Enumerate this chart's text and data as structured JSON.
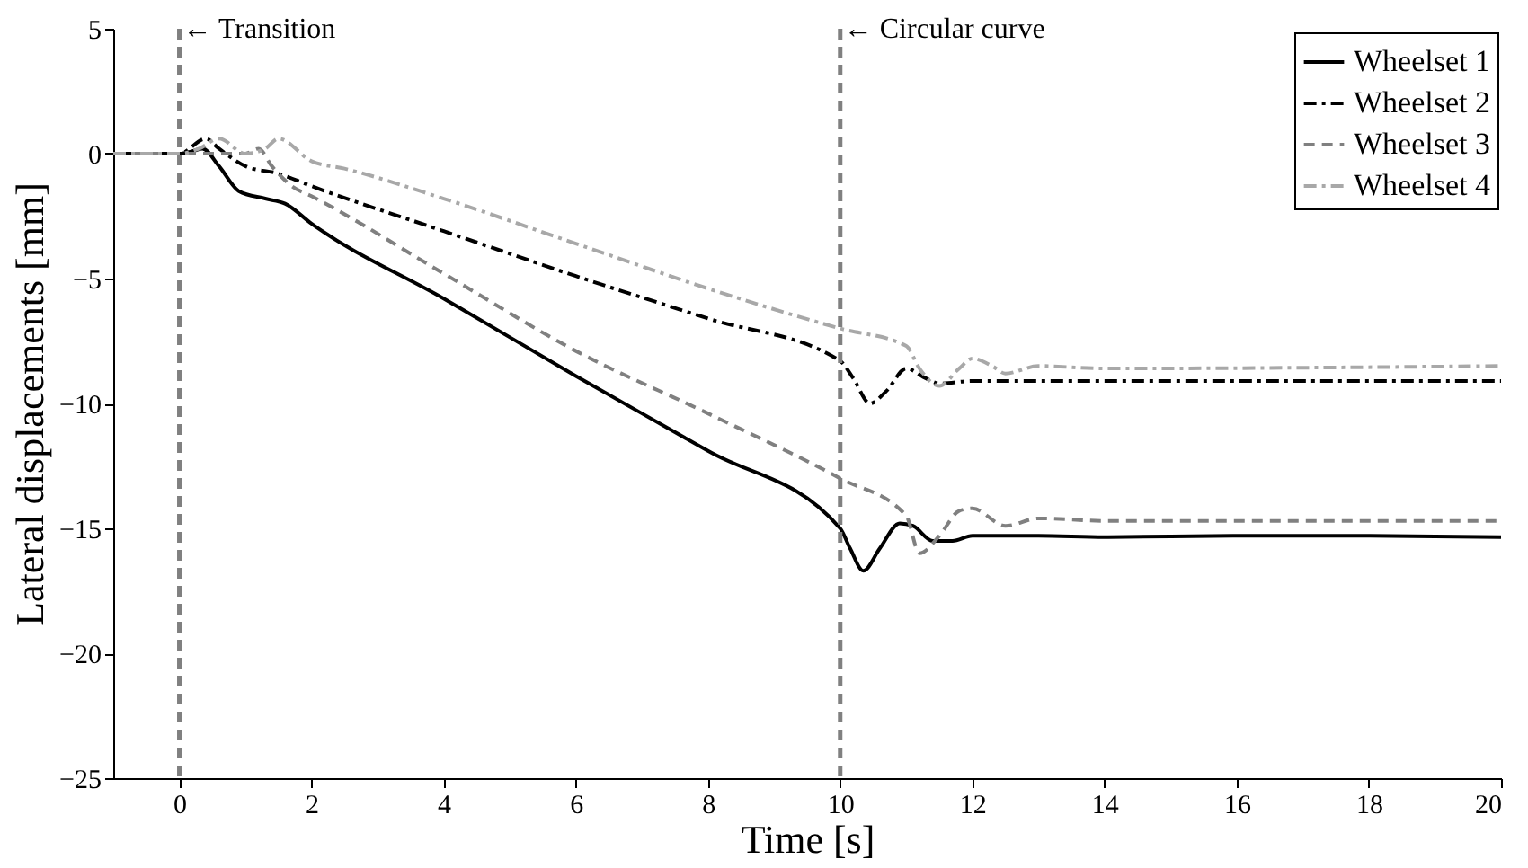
{
  "chart_data": {
    "type": "line",
    "xlabel": "Time [s]",
    "ylabel": "Lateral displacements [mm]",
    "xlim": [
      -1,
      20
    ],
    "ylim": [
      -25,
      5
    ],
    "xticks": [
      0,
      2,
      4,
      6,
      8,
      10,
      12,
      14,
      16,
      18,
      20
    ],
    "yticks": [
      -25,
      -20,
      -15,
      -10,
      -5,
      0,
      5
    ],
    "grid": false,
    "legend": "top right",
    "marker": "none",
    "ref_lines": [
      {
        "axis": "x",
        "value": 0,
        "label": "← Transition",
        "color": "#808080",
        "line_style": "dashed"
      },
      {
        "axis": "x",
        "value": 10,
        "label": "← Circular curve",
        "color": "#808080",
        "line_style": "dashed"
      }
    ],
    "series": [
      {
        "name": "Wheelset 1",
        "color": "#000000",
        "line_style": "solid",
        "x": [
          -1,
          0,
          0.2,
          0.35,
          0.6,
          0.9,
          1.3,
          1.6,
          2,
          4,
          6,
          8,
          10,
          10.15,
          10.35,
          10.6,
          10.9,
          11.1,
          11.4,
          11.7,
          12,
          13,
          14,
          16,
          18,
          20
        ],
        "values": [
          0,
          0,
          0.1,
          0.2,
          -0.5,
          -1.5,
          -1.8,
          -2.0,
          -2.8,
          -5.8,
          -8.9,
          -11.9,
          -15.0,
          -15.8,
          -16.7,
          -15.8,
          -14.8,
          -14.9,
          -15.5,
          -15.5,
          -15.3,
          -15.3,
          -15.35,
          -15.3,
          -15.3,
          -15.35
        ]
      },
      {
        "name": "Wheelset 2",
        "color": "#000000",
        "line_style": "dashdot",
        "x": [
          -1,
          0,
          0.4,
          0.6,
          1,
          1.5,
          2,
          4,
          6,
          8,
          10,
          10.2,
          10.45,
          10.7,
          11,
          11.3,
          11.5,
          12,
          14,
          20
        ],
        "values": [
          0,
          0,
          0.6,
          0.2,
          -0.5,
          -0.8,
          -1.3,
          -3.1,
          -4.9,
          -6.6,
          -8.3,
          -9.0,
          -10.0,
          -9.5,
          -8.6,
          -9.0,
          -9.2,
          -9.1,
          -9.1,
          -9.1
        ]
      },
      {
        "name": "Wheelset 3",
        "color": "#808080",
        "line_style": "dashed",
        "x": [
          -1,
          0,
          0.5,
          1,
          1.2,
          1.4,
          1.7,
          2,
          4,
          6,
          8,
          10,
          11,
          11.2,
          11.5,
          11.8,
          12,
          12.5,
          13,
          14,
          20
        ],
        "values": [
          0,
          0,
          0,
          0,
          0.2,
          -0.5,
          -1.3,
          -1.7,
          -4.8,
          -7.9,
          -10.4,
          -13.0,
          -14.5,
          -16.0,
          -15.3,
          -14.3,
          -14.2,
          -14.9,
          -14.6,
          -14.7,
          -14.7
        ]
      },
      {
        "name": "Wheelset 4",
        "color": "#a8a8a8",
        "line_style": "dashdot",
        "x": [
          -1,
          0,
          0.3,
          0.6,
          1,
          1.3,
          1.5,
          2,
          2.5,
          4,
          6,
          8,
          10,
          11,
          11.2,
          11.5,
          11.8,
          12,
          12.3,
          12.5,
          13,
          14,
          20
        ],
        "values": [
          0,
          0,
          0.2,
          0.6,
          0,
          0.2,
          0.6,
          -0.3,
          -0.6,
          -1.8,
          -3.6,
          -5.4,
          -7.0,
          -7.7,
          -8.6,
          -9.3,
          -8.6,
          -8.2,
          -8.5,
          -8.8,
          -8.5,
          -8.6,
          -8.5
        ]
      }
    ]
  }
}
